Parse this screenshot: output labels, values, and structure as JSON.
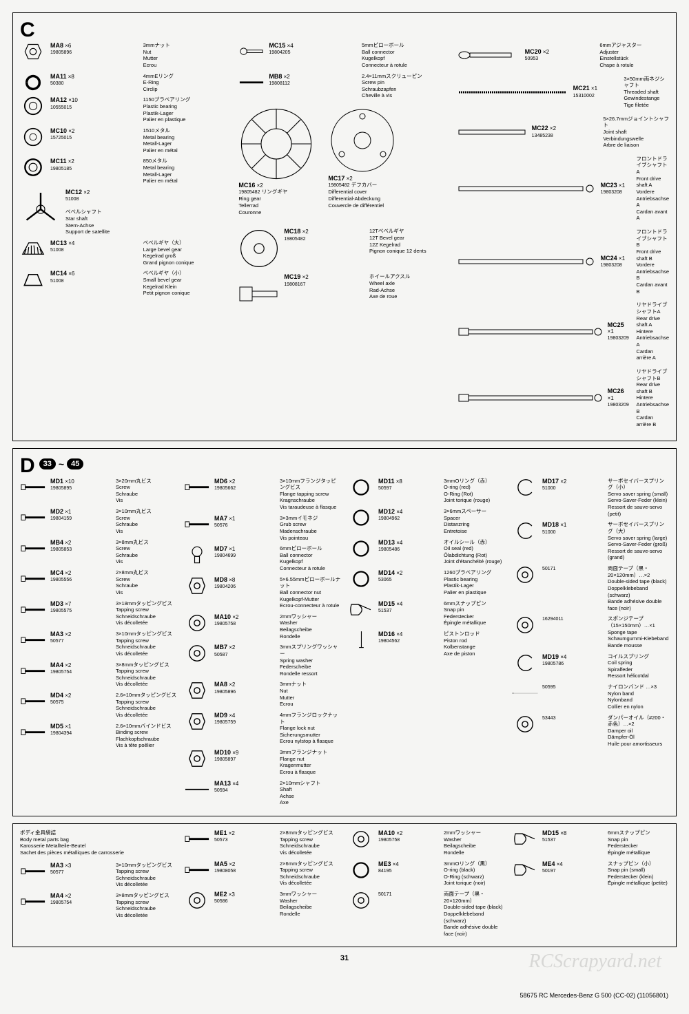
{
  "page_number": "31",
  "footer": "58675 RC Mercedes-Benz G 500 (CC-02) (11056801)",
  "watermark": "RCScrapyard.net",
  "sectionC": {
    "letter": "C",
    "col1": [
      {
        "code": "MA8",
        "qty": "×6",
        "num": "19805896",
        "jp": "3mmナット",
        "d1": "Nut",
        "d2": "Mutter",
        "d3": "Ecrou"
      },
      {
        "code": "MA11",
        "qty": "×8",
        "num": "50380",
        "jp": "4mmEリング",
        "d1": "E-Ring",
        "d2": "Circlip",
        "d3": ""
      },
      {
        "code": "MA12",
        "qty": "×10",
        "num": "10555015",
        "jp": "1150プラベアリング",
        "d1": "Plastic bearing",
        "d2": "Plastik-Lager",
        "d3": "Palier en plastique"
      },
      {
        "code": "MC10",
        "qty": "×2",
        "num": "15725015",
        "jp": "1510メタル",
        "d1": "Metal bearing",
        "d2": "Metall-Lager",
        "d3": "Palier en métal"
      },
      {
        "code": "MC11",
        "qty": "×2",
        "num": "19805185",
        "jp": "850メタル",
        "d1": "Metal bearing",
        "d2": "Metall-Lager",
        "d3": "Palier en métal"
      },
      {
        "code": "MC12",
        "qty": "×2",
        "num": "51008",
        "jp": "",
        "d1": "ベベルシャフト",
        "d2": "Star shaft",
        "d3": "Stern-Achse",
        "d4": "Support de satellite"
      },
      {
        "code": "MC13",
        "qty": "×4",
        "num": "51008",
        "jp": "ベベルギヤ（大）",
        "d1": "Large bevel gear",
        "d2": "Kegelrad groß",
        "d3": "Grand pignon conique"
      },
      {
        "code": "MC14",
        "qty": "×6",
        "num": "51008",
        "jp": "ベベルギヤ（小）",
        "d1": "Small bevel gear",
        "d2": "Kegelrad Klein",
        "d3": "Petit pignon conique"
      }
    ],
    "col2": [
      {
        "code": "MC15",
        "qty": "×4",
        "num": "19804205",
        "jp": "5mmピローボール",
        "d1": "Ball connector",
        "d2": "Kugelkopf",
        "d3": "Connecteur à rotule"
      },
      {
        "code": "MB8",
        "qty": "×2",
        "num": "19808112",
        "jp": "2.4×11mmスクリューピン",
        "d1": "Screw pin",
        "d2": "Schraubzapfen",
        "d3": "Cheville à vis"
      },
      {
        "code": "MC16",
        "qty": "×2",
        "num": "19805482",
        "jp": "リングギヤ",
        "d1": "Ring gear",
        "d2": "Tellerrad",
        "d3": "Couronne"
      },
      {
        "code": "MC17",
        "qty": "×2",
        "num": "19805482",
        "jp": "デフカバー",
        "d1": "Differential cover",
        "d2": "Differential-Abdeckung",
        "d3": "Couvercle de différentiel"
      },
      {
        "code": "MC18",
        "qty": "×2",
        "num": "19805482",
        "jp": "12Tベベルギヤ",
        "d1": "12T Bevel gear",
        "d2": "12Z Kegelrad",
        "d3": "Pignon conique 12 dents"
      },
      {
        "code": "MC19",
        "qty": "×2",
        "num": "19808167",
        "jp": "ホイールアクスル",
        "d1": "Wheel axle",
        "d2": "Rad-Achse",
        "d3": "Axe de roue"
      }
    ],
    "col3": [
      {
        "code": "MC20",
        "qty": "×2",
        "num": "50953",
        "jp": "6mmアジャスター",
        "d1": "Adjuster",
        "d2": "Einstellstück",
        "d3": "Chape à rotule"
      },
      {
        "code": "MC21",
        "qty": "×1",
        "num": "15310002",
        "jp": "3×50mm両ネジシャフト",
        "d1": "Threaded shaft",
        "d2": "Gewindestange",
        "d3": "Tige filetée"
      },
      {
        "code": "MC22",
        "qty": "×2",
        "num": "13485238",
        "jp": "5×26.7mmジョイントシャフト",
        "d1": "Joint shaft",
        "d2": "Verbindungswelle",
        "d3": "Arbre de liaison"
      },
      {
        "code": "MC23",
        "qty": "×1",
        "num": "19803208",
        "jp": "フロントドライブシャフトA",
        "d1": "Front drive shaft A",
        "d2": "Vordere Antriebsachse A",
        "d3": "Cardan avant A"
      },
      {
        "code": "MC24",
        "qty": "×1",
        "num": "19803208",
        "jp": "フロントドライブシャフトB",
        "d1": "Front drive shaft B",
        "d2": "Vordere Antriebsachse B",
        "d3": "Cardan avant B"
      },
      {
        "code": "MC25",
        "qty": "×1",
        "num": "19803209",
        "jp": "リヤドライブシャフトA",
        "d1": "Rear drive shaft A",
        "d2": "Hintere Antriebsachse A",
        "d3": "Cardan arrière A"
      },
      {
        "code": "MC26",
        "qty": "×1",
        "num": "19803209",
        "jp": "リヤドライブシャフトB",
        "d1": "Rear drive shaft B",
        "d2": "Hintere Antriebsachse B",
        "d3": "Cardan arrière B"
      }
    ]
  },
  "sectionD": {
    "letter": "D",
    "steps_from": "33",
    "steps_to": "45",
    "col1": [
      {
        "code": "MD1",
        "qty": "×10",
        "num": "19805895",
        "jp": "3×20mm丸ビス",
        "d1": "Screw",
        "d2": "Schraube",
        "d3": "Vis"
      },
      {
        "code": "MD2",
        "qty": "×1",
        "num": "19804159",
        "jp": "3×10mm丸ビス",
        "d1": "Screw",
        "d2": "Schraube",
        "d3": "Vis"
      },
      {
        "code": "MB4",
        "qty": "×2",
        "num": "19805853",
        "jp": "3×8mm丸ビス",
        "d1": "Screw",
        "d2": "Schraube",
        "d3": "Vis"
      },
      {
        "code": "MC4",
        "qty": "×2",
        "num": "19805556",
        "jp": "2×8mm丸ビス",
        "d1": "Screw",
        "d2": "Schraube",
        "d3": "Vis"
      },
      {
        "code": "MD3",
        "qty": "×7",
        "num": "19805575",
        "jp": "3×18mmタッピングビス",
        "d1": "Tapping screw",
        "d2": "Schneidschraube",
        "d3": "Vis décolletée"
      },
      {
        "code": "MA3",
        "qty": "×2",
        "num": "50577",
        "jp": "3×10mmタッピングビス",
        "d1": "Tapping screw",
        "d2": "Schneidschraube",
        "d3": "Vis décolletée"
      },
      {
        "code": "MA4",
        "qty": "×2",
        "num": "19805754",
        "jp": "3×8mmタッピングビス",
        "d1": "Tapping screw",
        "d2": "Schneidschraube",
        "d3": "Vis décolletée"
      },
      {
        "code": "MD4",
        "qty": "×2",
        "num": "50575",
        "jp": "2.6×10mmタッピングビス",
        "d1": "Tapping screw",
        "d2": "Schneidschraube",
        "d3": "Vis décolletée"
      },
      {
        "code": "MD5",
        "qty": "×1",
        "num": "19804394",
        "jp": "2.6×10mmバインドビス",
        "d1": "Binding screw",
        "d2": "Flachkopfschraube",
        "d3": "Vis à tête poêlier"
      }
    ],
    "col2": [
      {
        "code": "MD6",
        "qty": "×2",
        "num": "19805662",
        "jp": "3×10mmフランジタッピングビス",
        "d1": "Flange tapping screw",
        "d2": "Kragnschraube",
        "d3": "Vis taraudeuse à flasque"
      },
      {
        "code": "MA7",
        "qty": "×1",
        "num": "50576",
        "jp": "3×3mmイモネジ",
        "d1": "Grub screw",
        "d2": "Madenschraube",
        "d3": "Vis pointeau"
      },
      {
        "code": "MD7",
        "qty": "×1",
        "num": "19804699",
        "jp": "6mmピローボール",
        "d1": "Ball connector",
        "d2": "Kugelkopf",
        "d3": "Connecteur à rotule"
      },
      {
        "code": "MD8",
        "qty": "×8",
        "num": "19804206",
        "jp": "5×6.55mmピローボールナット",
        "d1": "Ball connector nut",
        "d2": "Kugelkopf-Mutter",
        "d3": "Ecrou-connecteur à rotule"
      },
      {
        "code": "MA10",
        "qty": "×2",
        "num": "19805758",
        "jp": "2mmワッシャー",
        "d1": "Washer",
        "d2": "Beilagscheibe",
        "d3": "Rondelle"
      },
      {
        "code": "MB7",
        "qty": "×2",
        "num": "50587",
        "jp": "3mmスプリングワッシャー",
        "d1": "Spring washer",
        "d2": "Federscheibe",
        "d3": "Rondelle ressort"
      },
      {
        "code": "MA8",
        "qty": "×2",
        "num": "19805896",
        "jp": "3mmナット",
        "d1": "Nut",
        "d2": "Mutter",
        "d3": "Ecrou"
      },
      {
        "code": "MD9",
        "qty": "×4",
        "num": "19805759",
        "jp": "4mmフランジロックナット",
        "d1": "Flange lock nut",
        "d2": "Sicherungsmutter",
        "d3": "Ecrou nylstop à flasque"
      },
      {
        "code": "MD10",
        "qty": "×9",
        "num": "19805897",
        "jp": "3mmフランジナット",
        "d1": "Flange nut",
        "d2": "Kragenmutter",
        "d3": "Ecrou à flasque"
      },
      {
        "code": "MA13",
        "qty": "×4",
        "num": "50594",
        "jp": "2×10mmシャフト",
        "d1": "Shaft",
        "d2": "Achse",
        "d3": "Axe"
      }
    ],
    "col3": [
      {
        "code": "MD11",
        "qty": "×8",
        "num": "50597",
        "jp": "3mmOリング（赤）",
        "d1": "O-ring (red)",
        "d2": "O-Ring (Rot)",
        "d3": "Joint torique (rouge)"
      },
      {
        "code": "MD12",
        "qty": "×4",
        "num": "19804962",
        "jp": "3×6mmスペーサー",
        "d1": "Spacer",
        "d2": "Distanzring",
        "d3": "Entretoise"
      },
      {
        "code": "MD13",
        "qty": "×4",
        "num": "19805486",
        "jp": "オイルシール（赤）",
        "d1": "Oil seal (red)",
        "d2": "Ölabdichtung (Rot)",
        "d3": "Joint d'étanchéité (rouge)"
      },
      {
        "code": "MD14",
        "qty": "×2",
        "num": "53065",
        "jp": "1260プラベアリング",
        "d1": "Plastic bearing",
        "d2": "Plastik-Lager",
        "d3": "Palier en plastique"
      },
      {
        "code": "MD15",
        "qty": "×4",
        "num": "51537",
        "jp": "6mmスナップピン",
        "d1": "Snap pin",
        "d2": "Federstecker",
        "d3": "Épingle métallique"
      },
      {
        "code": "MD16",
        "qty": "×4",
        "num": "19804562",
        "jp": "ピストンロッド",
        "d1": "Piston rod",
        "d2": "Kolbenstange",
        "d3": "Axe de piston"
      }
    ],
    "col4": [
      {
        "code": "MD17",
        "qty": "×2",
        "num": "51000",
        "jp": "サーボセイバースプリング（小）",
        "d1": "Servo saver spring (small)",
        "d2": "Servo-Saver-Feder (klein)",
        "d3": "Ressort de sauve-servo (petit)"
      },
      {
        "code": "MD18",
        "qty": "×1",
        "num": "51000",
        "jp": "サーボセイバースプリング（大）",
        "d1": "Servo saver spring (large)",
        "d2": "Servo-Saver-Feder (groß)",
        "d3": "Ressort de sauve-servo (grand)"
      },
      {
        "code": "",
        "qty": "",
        "num": "50171",
        "jp": "両面テープ（黒・20×120mm）…×2",
        "d1": "Double-sided tape (black)",
        "d2": "Doppelklebeband (schwarz)",
        "d3": "Bande adhésive double face (noir)"
      },
      {
        "code": "",
        "qty": "",
        "num": "16294011",
        "jp": "スポンジテープ（15×150mm）…×1",
        "d1": "Sponge tape",
        "d2": "Schaumgummi-Klebeband",
        "d3": "Bande mousse"
      },
      {
        "code": "MD19",
        "qty": "×4",
        "num": "19805786",
        "jp": "コイルスプリング",
        "d1": "Coil spring",
        "d2": "Spiralfeder",
        "d3": "Ressort hélicoïdal"
      },
      {
        "code": "",
        "qty": "",
        "num": "50595",
        "jp": "ナイロンバンド …×3",
        "d1": "Nylon band",
        "d2": "Nylonband",
        "d3": "Collier en nylon"
      },
      {
        "code": "",
        "qty": "",
        "num": "53443",
        "jp": "ダンパーオイル（#200・赤色）…×2",
        "d1": "Damper oil",
        "d2": "Dämpfer-Öl",
        "d3": "Huile pour amortisseurs"
      }
    ]
  },
  "sectionE": {
    "title_jp": "ボディ金具袋詰",
    "title_en": "Body metal parts bag",
    "title_de": "Karosserie Metallteile-Beutel",
    "title_fr": "Sachet des pièces métalliques de carrosserie",
    "col1": [
      {
        "code": "MA3",
        "qty": "×3",
        "num": "50577",
        "jp": "3×10mmタッピングビス",
        "d1": "Tapping screw",
        "d2": "Schneidschraube",
        "d3": "Vis décolletée"
      },
      {
        "code": "MA4",
        "qty": "×2",
        "num": "19805754",
        "jp": "3×8mmタッピングビス",
        "d1": "Tapping screw",
        "d2": "Schneidschraube",
        "d3": "Vis décolletée"
      }
    ],
    "col2": [
      {
        "code": "ME1",
        "qty": "×2",
        "num": "50573",
        "jp": "2×8mmタッピングビス",
        "d1": "Tapping screw",
        "d2": "Schneidschraube",
        "d3": "Vis décolletée"
      },
      {
        "code": "MA5",
        "qty": "×2",
        "num": "19808058",
        "jp": "2×6mmタッピングビス",
        "d1": "Tapping screw",
        "d2": "Schneidschraube",
        "d3": "Vis décolletée"
      },
      {
        "code": "ME2",
        "qty": "×3",
        "num": "50586",
        "jp": "3mmワッシャー",
        "d1": "Washer",
        "d2": "Beilagscheibe",
        "d3": "Rondelle"
      }
    ],
    "col3": [
      {
        "code": "MA10",
        "qty": "×2",
        "num": "19805758",
        "jp": "2mmワッシャー",
        "d1": "Washer",
        "d2": "Beilagscheibe",
        "d3": "Rondelle"
      },
      {
        "code": "ME3",
        "qty": "×4",
        "num": "84195",
        "jp": "3mmOリング（黒）",
        "d1": "O-ring (black)",
        "d2": "O-Ring (schwarz)",
        "d3": "Joint torique (noir)"
      },
      {
        "code": "",
        "qty": "",
        "num": "50171",
        "jp": "両面テープ（黒・20×120mm）",
        "d1": "Double-sided tape (black)",
        "d2": "Doppelklebeband (schwarz)",
        "d3": "Bande adhésive double face (noir)"
      }
    ],
    "col4": [
      {
        "code": "MD15",
        "qty": "×8",
        "num": "51537",
        "jp": "6mmスナップピン",
        "d1": "Snap pin",
        "d2": "Federstecker",
        "d3": "Épingle métallique"
      },
      {
        "code": "ME4",
        "qty": "×4",
        "num": "50197",
        "jp": "スナップピン（小）",
        "d1": "Snap pin (small)",
        "d2": "Federstecker (klein)",
        "d3": "Épingle métallique (petite)"
      }
    ]
  }
}
